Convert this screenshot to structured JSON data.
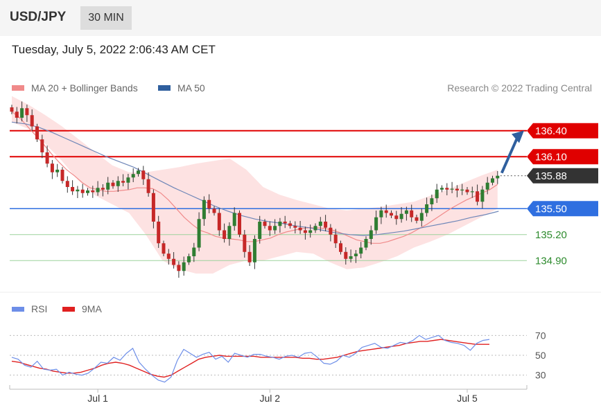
{
  "header": {
    "symbol": "USD/JPY",
    "timeframe": "30 MIN"
  },
  "timestamp": "Tuesday, July 5, 2022 2:06:43 AM CET",
  "credit": "Research © 2022 Trading Central",
  "colors": {
    "resistance": "#e00000",
    "pivot": "#2f6fe0",
    "support": "#9bd29b",
    "support_text": "#2e8b2e",
    "last_price": "#333333",
    "band_fill": "#fde2e2",
    "ma20": "#f08a8a",
    "ma50": "#6e86b8",
    "candle_up": "#2f7d32",
    "candle_down": "#c62828",
    "arrow": "#2f5f9e",
    "rsi": "#6d8ee8",
    "rsi_ma": "#e02020"
  },
  "chart_data": [
    {
      "type": "candlestick",
      "legend": [
        {
          "name": "MA 20 + Bollinger Bands",
          "color": "#f08a8a"
        },
        {
          "name": "MA 50",
          "color": "#2f5f9e"
        }
      ],
      "ylim": [
        134.55,
        136.75
      ],
      "x_ticks": [
        {
          "label": "Jul 1",
          "index": 17
        },
        {
          "label": "Jul 2",
          "index": 51
        },
        {
          "label": "Jul 5",
          "index": 90
        }
      ],
      "levels": [
        {
          "label": "136.40",
          "value": 136.4,
          "kind": "resistance"
        },
        {
          "label": "136.10",
          "value": 136.1,
          "kind": "resistance"
        },
        {
          "label": "135.88",
          "value": 135.88,
          "kind": "last"
        },
        {
          "label": "135.50",
          "value": 135.5,
          "kind": "pivot"
        },
        {
          "label": "135.20",
          "value": 135.2,
          "kind": "support"
        },
        {
          "label": "134.90",
          "value": 134.9,
          "kind": "support"
        }
      ],
      "close": [
        136.62,
        136.55,
        136.66,
        136.58,
        136.45,
        136.3,
        136.15,
        136.02,
        135.92,
        135.95,
        135.82,
        135.75,
        135.7,
        135.72,
        135.68,
        135.71,
        135.69,
        135.74,
        135.72,
        135.8,
        135.76,
        135.82,
        135.8,
        135.86,
        135.9,
        135.94,
        135.84,
        135.68,
        135.35,
        135.1,
        134.98,
        134.92,
        134.85,
        134.78,
        134.88,
        134.95,
        135.05,
        135.38,
        135.6,
        135.5,
        135.45,
        135.25,
        135.15,
        135.3,
        135.45,
        135.2,
        135.0,
        134.88,
        135.15,
        135.35,
        135.3,
        135.25,
        135.3,
        135.35,
        135.33,
        135.3,
        135.28,
        135.25,
        135.22,
        135.25,
        135.3,
        135.35,
        135.28,
        135.2,
        135.1,
        135.0,
        134.92,
        134.95,
        134.98,
        135.05,
        135.15,
        135.25,
        135.4,
        135.48,
        135.45,
        135.42,
        135.38,
        135.44,
        135.48,
        135.4,
        135.36,
        135.45,
        135.55,
        135.62,
        135.72,
        135.74,
        135.72,
        135.73,
        135.71,
        135.72,
        135.69,
        135.7,
        135.58,
        135.72,
        135.8,
        135.85,
        135.88
      ],
      "ma20": [
        136.62,
        136.55,
        136.45,
        136.35,
        136.25,
        136.14,
        136.04,
        135.95,
        135.88,
        135.8,
        135.74,
        135.72,
        135.7,
        135.7,
        135.71,
        135.72,
        135.74,
        135.74,
        135.73,
        135.68,
        135.6,
        135.5,
        135.4,
        135.32,
        135.25,
        135.22,
        135.18,
        135.16,
        135.15,
        135.14,
        135.12,
        135.12,
        135.14,
        135.16,
        135.2,
        135.23,
        135.25,
        135.27,
        135.28,
        135.28,
        135.27,
        135.25,
        135.22,
        135.18,
        135.14,
        135.12,
        135.1,
        135.1,
        135.12,
        135.15,
        135.18,
        135.22,
        135.27,
        135.32,
        135.38,
        135.44,
        135.5,
        135.55,
        135.6,
        135.64,
        135.68,
        135.72,
        135.78
      ],
      "ma20_x": [
        0,
        2,
        4,
        6,
        8,
        10,
        12,
        14,
        16,
        18,
        20,
        22,
        24,
        26,
        28,
        30,
        32,
        34,
        36,
        38,
        40,
        42,
        44,
        46,
        48,
        50,
        52,
        54,
        56,
        58,
        60,
        62,
        64,
        66,
        68,
        70,
        72,
        74,
        76,
        78,
        80,
        82,
        84,
        86,
        88,
        90,
        92,
        94,
        96,
        98,
        100,
        102,
        104,
        106,
        108,
        110,
        112,
        114,
        116,
        118,
        120,
        122,
        124
      ],
      "ma50": [
        136.5,
        136.48,
        136.44,
        136.38,
        136.31,
        136.24,
        136.17,
        136.1,
        136.04,
        135.98,
        135.9,
        135.82,
        135.74,
        135.67,
        135.6,
        135.53,
        135.47,
        135.42,
        135.38,
        135.35,
        135.33,
        135.3,
        135.28,
        135.25,
        135.22,
        135.2,
        135.19,
        135.2,
        135.22,
        135.24,
        135.27,
        135.3,
        135.33,
        135.36,
        135.4,
        135.43,
        135.47
      ],
      "upper_band": [
        136.8,
        136.7,
        136.58,
        136.45,
        136.3,
        136.15,
        136.0,
        135.92,
        135.92,
        135.95,
        135.98,
        136.02,
        136.05,
        136.08,
        135.95,
        135.75,
        135.66,
        135.6,
        135.55,
        135.5,
        135.48,
        135.5,
        135.52,
        135.55,
        135.58,
        135.65,
        135.72,
        135.8,
        135.88,
        135.95
      ],
      "lower_band": [
        136.5,
        136.42,
        136.25,
        136.05,
        135.82,
        135.65,
        135.55,
        135.45,
        135.2,
        134.9,
        134.8,
        134.75,
        134.75,
        134.85,
        134.9,
        134.9,
        134.95,
        135.0,
        134.98,
        134.88,
        134.8,
        134.82,
        134.88,
        134.95,
        135.05,
        135.12,
        135.2,
        135.3,
        135.4,
        135.5
      ]
    },
    {
      "type": "line",
      "legend": [
        {
          "name": "RSI",
          "color": "#6d8ee8"
        },
        {
          "name": "9MA",
          "color": "#e02020"
        }
      ],
      "ylim": [
        20,
        80
      ],
      "y_ticks": [
        {
          "label": "70",
          "value": 70
        },
        {
          "label": "50",
          "value": 50
        },
        {
          "label": "30",
          "value": 30
        }
      ],
      "rsi": [
        48,
        46,
        40,
        38,
        44,
        36,
        35,
        36,
        30,
        33,
        31,
        30,
        32,
        37,
        43,
        42,
        48,
        45,
        52,
        57,
        43,
        36,
        30,
        25,
        23,
        28,
        45,
        56,
        52,
        48,
        51,
        53,
        46,
        49,
        43,
        52,
        50,
        48,
        51,
        51,
        49,
        48,
        46,
        49,
        50,
        48,
        52,
        53,
        48,
        42,
        41,
        44,
        50,
        48,
        52,
        58,
        60,
        62,
        58,
        57,
        60,
        63,
        62,
        65,
        70,
        66,
        68,
        70,
        65,
        63,
        62,
        60,
        55,
        62,
        65,
        66
      ],
      "rsi_ma": [
        44,
        43,
        41,
        39,
        37,
        36,
        34,
        33,
        32,
        32,
        33,
        35,
        37,
        40,
        42,
        43,
        42,
        40,
        37,
        34,
        31,
        29,
        28,
        30,
        34,
        38,
        42,
        46,
        48,
        49,
        50,
        49,
        49,
        49,
        49,
        49,
        48,
        48,
        48,
        48,
        48,
        48,
        47,
        47,
        46,
        46,
        47,
        48,
        50,
        52,
        54,
        55,
        56,
        57,
        58,
        59,
        60,
        62,
        63,
        64,
        64,
        65,
        66,
        65,
        64,
        63,
        62,
        61,
        61,
        61
      ]
    }
  ]
}
